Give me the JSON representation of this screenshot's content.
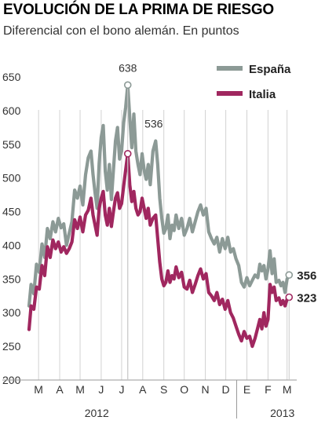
{
  "chart_data": {
    "type": "line",
    "title": "EVOLUCIÓN DE LA PRIMA DE RIESGO",
    "subtitle": "Diferencial con el bono alemán. En puntos",
    "ylim": [
      200,
      650
    ],
    "yticks": [
      200,
      250,
      300,
      350,
      400,
      450,
      500,
      550,
      600,
      650
    ],
    "xlim": [
      "2012-03-01",
      "2013-03-20"
    ],
    "month_ticks": [
      {
        "label": "M",
        "date": "2012-03-15"
      },
      {
        "label": "A",
        "date": "2012-04-15"
      },
      {
        "label": "M",
        "date": "2012-05-15"
      },
      {
        "label": "J",
        "date": "2012-06-15"
      },
      {
        "label": "J",
        "date": "2012-07-15"
      },
      {
        "label": "A",
        "date": "2012-08-15"
      },
      {
        "label": "S",
        "date": "2012-09-15"
      },
      {
        "label": "O",
        "date": "2012-10-15"
      },
      {
        "label": "N",
        "date": "2012-11-15"
      },
      {
        "label": "D",
        "date": "2012-12-15"
      },
      {
        "label": "E",
        "date": "2013-01-15"
      },
      {
        "label": "F",
        "date": "2013-02-15"
      },
      {
        "label": "M",
        "date": "2013-03-15"
      }
    ],
    "years": [
      {
        "label": "2012",
        "date": "2012-07-20"
      },
      {
        "label": "2013",
        "date": "2013-02-20"
      }
    ],
    "legend_position": "top-right",
    "grid": false,
    "series": [
      {
        "name": "España",
        "color": "#8c9a96",
        "points": [
          [
            "2012-03-01",
            310
          ],
          [
            "2012-03-04",
            342
          ],
          [
            "2012-03-08",
            328
          ],
          [
            "2012-03-12",
            372
          ],
          [
            "2012-03-16",
            360
          ],
          [
            "2012-03-20",
            402
          ],
          [
            "2012-03-24",
            382
          ],
          [
            "2012-03-28",
            425
          ],
          [
            "2012-04-01",
            410
          ],
          [
            "2012-04-05",
            435
          ],
          [
            "2012-04-09",
            420
          ],
          [
            "2012-04-13",
            440
          ],
          [
            "2012-04-17",
            426
          ],
          [
            "2012-04-21",
            432
          ],
          [
            "2012-04-25",
            400
          ],
          [
            "2012-04-29",
            418
          ],
          [
            "2012-05-03",
            435
          ],
          [
            "2012-05-07",
            482
          ],
          [
            "2012-05-11",
            470
          ],
          [
            "2012-05-15",
            488
          ],
          [
            "2012-05-19",
            460
          ],
          [
            "2012-05-23",
            505
          ],
          [
            "2012-05-27",
            530
          ],
          [
            "2012-05-31",
            540
          ],
          [
            "2012-06-03",
            505
          ],
          [
            "2012-06-06",
            478
          ],
          [
            "2012-06-09",
            455
          ],
          [
            "2012-06-12",
            522
          ],
          [
            "2012-06-15",
            560
          ],
          [
            "2012-06-18",
            578
          ],
          [
            "2012-06-21",
            510
          ],
          [
            "2012-06-24",
            482
          ],
          [
            "2012-06-27",
            520
          ],
          [
            "2012-06-30",
            468
          ],
          [
            "2012-07-03",
            512
          ],
          [
            "2012-07-06",
            555
          ],
          [
            "2012-07-09",
            575
          ],
          [
            "2012-07-12",
            528
          ],
          [
            "2012-07-15",
            540
          ],
          [
            "2012-07-18",
            582
          ],
          [
            "2012-07-21",
            605
          ],
          [
            "2012-07-24",
            638
          ],
          [
            "2012-07-27",
            590
          ],
          [
            "2012-07-30",
            545
          ],
          [
            "2012-08-02",
            595
          ],
          [
            "2012-08-05",
            540
          ],
          [
            "2012-08-08",
            520
          ],
          [
            "2012-08-11",
            505
          ],
          [
            "2012-08-14",
            536
          ],
          [
            "2012-08-17",
            512
          ],
          [
            "2012-08-20",
            498
          ],
          [
            "2012-08-23",
            520
          ],
          [
            "2012-08-26",
            490
          ],
          [
            "2012-08-30",
            540
          ],
          [
            "2012-09-03",
            555
          ],
          [
            "2012-09-06",
            520
          ],
          [
            "2012-09-09",
            470
          ],
          [
            "2012-09-12",
            440
          ],
          [
            "2012-09-15",
            418
          ],
          [
            "2012-09-18",
            425
          ],
          [
            "2012-09-21",
            445
          ],
          [
            "2012-09-24",
            410
          ],
          [
            "2012-09-27",
            430
          ],
          [
            "2012-09-30",
            422
          ],
          [
            "2012-10-03",
            445
          ],
          [
            "2012-10-07",
            425
          ],
          [
            "2012-10-11",
            440
          ],
          [
            "2012-10-15",
            415
          ],
          [
            "2012-10-19",
            425
          ],
          [
            "2012-10-23",
            440
          ],
          [
            "2012-10-27",
            420
          ],
          [
            "2012-10-31",
            435
          ],
          [
            "2012-11-04",
            450
          ],
          [
            "2012-11-08",
            460
          ],
          [
            "2012-11-12",
            445
          ],
          [
            "2012-11-16",
            455
          ],
          [
            "2012-11-20",
            420
          ],
          [
            "2012-11-24",
            410
          ],
          [
            "2012-11-28",
            402
          ],
          [
            "2012-12-02",
            412
          ],
          [
            "2012-12-06",
            390
          ],
          [
            "2012-12-10",
            410
          ],
          [
            "2012-12-14",
            395
          ],
          [
            "2012-12-18",
            412
          ],
          [
            "2012-12-22",
            390
          ],
          [
            "2012-12-26",
            395
          ],
          [
            "2012-12-30",
            380
          ],
          [
            "2013-01-03",
            370
          ],
          [
            "2013-01-07",
            345
          ],
          [
            "2013-01-11",
            338
          ],
          [
            "2013-01-15",
            352
          ],
          [
            "2013-01-19",
            340
          ],
          [
            "2013-01-23",
            348
          ],
          [
            "2013-01-27",
            356
          ],
          [
            "2013-01-31",
            352
          ],
          [
            "2013-02-03",
            372
          ],
          [
            "2013-02-06",
            362
          ],
          [
            "2013-02-09",
            370
          ],
          [
            "2013-02-12",
            350
          ],
          [
            "2013-02-15",
            365
          ],
          [
            "2013-02-18",
            392
          ],
          [
            "2013-02-21",
            358
          ],
          [
            "2013-02-24",
            380
          ],
          [
            "2013-02-27",
            345
          ],
          [
            "2013-03-03",
            348
          ],
          [
            "2013-03-06",
            340
          ],
          [
            "2013-03-09",
            345
          ],
          [
            "2013-03-12",
            330
          ],
          [
            "2013-03-15",
            350
          ],
          [
            "2013-03-18",
            356
          ]
        ]
      },
      {
        "name": "Italia",
        "color": "#a0275f",
        "points": [
          [
            "2012-03-01",
            275
          ],
          [
            "2012-03-04",
            310
          ],
          [
            "2012-03-08",
            305
          ],
          [
            "2012-03-12",
            338
          ],
          [
            "2012-03-16",
            335
          ],
          [
            "2012-03-20",
            370
          ],
          [
            "2012-03-24",
            355
          ],
          [
            "2012-03-28",
            398
          ],
          [
            "2012-04-01",
            382
          ],
          [
            "2012-04-05",
            408
          ],
          [
            "2012-04-09",
            395
          ],
          [
            "2012-04-13",
            405
          ],
          [
            "2012-04-17",
            390
          ],
          [
            "2012-04-21",
            398
          ],
          [
            "2012-04-25",
            388
          ],
          [
            "2012-04-29",
            395
          ],
          [
            "2012-05-03",
            405
          ],
          [
            "2012-05-07",
            438
          ],
          [
            "2012-05-11",
            425
          ],
          [
            "2012-05-15",
            442
          ],
          [
            "2012-05-19",
            420
          ],
          [
            "2012-05-23",
            445
          ],
          [
            "2012-05-27",
            452
          ],
          [
            "2012-05-31",
            470
          ],
          [
            "2012-06-03",
            445
          ],
          [
            "2012-06-06",
            430
          ],
          [
            "2012-06-09",
            415
          ],
          [
            "2012-06-12",
            455
          ],
          [
            "2012-06-15",
            470
          ],
          [
            "2012-06-18",
            480
          ],
          [
            "2012-06-21",
            445
          ],
          [
            "2012-06-24",
            430
          ],
          [
            "2012-06-27",
            455
          ],
          [
            "2012-06-30",
            428
          ],
          [
            "2012-07-03",
            450
          ],
          [
            "2012-07-06",
            470
          ],
          [
            "2012-07-09",
            478
          ],
          [
            "2012-07-12",
            455
          ],
          [
            "2012-07-15",
            462
          ],
          [
            "2012-07-18",
            488
          ],
          [
            "2012-07-21",
            512
          ],
          [
            "2012-07-24",
            536
          ],
          [
            "2012-07-27",
            490
          ],
          [
            "2012-07-30",
            465
          ],
          [
            "2012-08-02",
            480
          ],
          [
            "2012-08-05",
            455
          ],
          [
            "2012-08-08",
            445
          ],
          [
            "2012-08-11",
            450
          ],
          [
            "2012-08-14",
            470
          ],
          [
            "2012-08-17",
            455
          ],
          [
            "2012-08-20",
            440
          ],
          [
            "2012-08-23",
            455
          ],
          [
            "2012-08-26",
            430
          ],
          [
            "2012-08-30",
            440
          ],
          [
            "2012-09-03",
            445
          ],
          [
            "2012-09-06",
            410
          ],
          [
            "2012-09-09",
            375
          ],
          [
            "2012-09-12",
            350
          ],
          [
            "2012-09-15",
            340
          ],
          [
            "2012-09-18",
            345
          ],
          [
            "2012-09-21",
            362
          ],
          [
            "2012-09-24",
            345
          ],
          [
            "2012-09-27",
            355
          ],
          [
            "2012-09-30",
            350
          ],
          [
            "2012-10-03",
            368
          ],
          [
            "2012-10-07",
            352
          ],
          [
            "2012-10-11",
            360
          ],
          [
            "2012-10-15",
            338
          ],
          [
            "2012-10-19",
            335
          ],
          [
            "2012-10-23",
            348
          ],
          [
            "2012-10-27",
            330
          ],
          [
            "2012-10-31",
            342
          ],
          [
            "2012-11-04",
            355
          ],
          [
            "2012-11-08",
            365
          ],
          [
            "2012-11-12",
            350
          ],
          [
            "2012-11-16",
            358
          ],
          [
            "2012-11-20",
            330
          ],
          [
            "2012-11-24",
            325
          ],
          [
            "2012-11-28",
            318
          ],
          [
            "2012-12-02",
            330
          ],
          [
            "2012-12-06",
            312
          ],
          [
            "2012-12-10",
            320
          ],
          [
            "2012-12-14",
            305
          ],
          [
            "2012-12-18",
            318
          ],
          [
            "2012-12-22",
            300
          ],
          [
            "2012-12-26",
            292
          ],
          [
            "2012-12-30",
            280
          ],
          [
            "2013-01-03",
            268
          ],
          [
            "2013-01-07",
            258
          ],
          [
            "2013-01-11",
            272
          ],
          [
            "2013-01-15",
            262
          ],
          [
            "2013-01-19",
            265
          ],
          [
            "2013-01-23",
            250
          ],
          [
            "2013-01-27",
            262
          ],
          [
            "2013-01-31",
            278
          ],
          [
            "2013-02-03",
            290
          ],
          [
            "2013-02-06",
            276
          ],
          [
            "2013-02-09",
            300
          ],
          [
            "2013-02-12",
            280
          ],
          [
            "2013-02-15",
            290
          ],
          [
            "2013-02-18",
            342
          ],
          [
            "2013-02-21",
            330
          ],
          [
            "2013-02-24",
            338
          ],
          [
            "2013-02-27",
            318
          ],
          [
            "2013-03-03",
            322
          ],
          [
            "2013-03-06",
            312
          ],
          [
            "2013-03-09",
            318
          ],
          [
            "2013-03-12",
            310
          ],
          [
            "2013-03-15",
            320
          ],
          [
            "2013-03-18",
            323
          ]
        ]
      }
    ],
    "annotations": [
      {
        "label": "638",
        "date": "2012-07-24",
        "value": 638,
        "series": "España"
      },
      {
        "label": "536",
        "date": "2012-07-24",
        "value": 536,
        "series": "Italia"
      },
      {
        "label": "356",
        "date": "2013-03-18",
        "value": 356,
        "series": "España"
      },
      {
        "label": "323",
        "date": "2013-03-18",
        "value": 323,
        "series": "Italia"
      }
    ]
  }
}
